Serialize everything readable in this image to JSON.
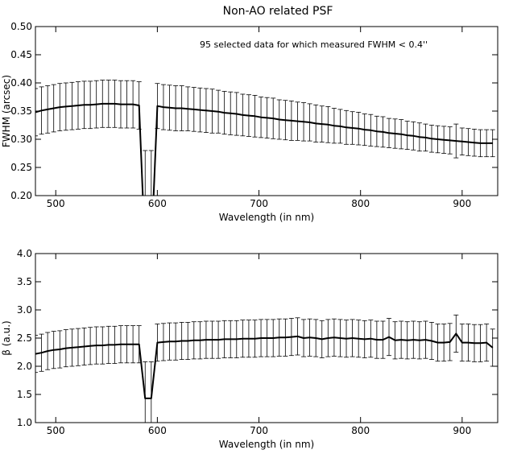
{
  "title": "Non-AO related PSF",
  "chart_data": [
    {
      "type": "line",
      "xlabel": "Wavelength (in nm)",
      "ylabel": "FWHM (arcsec)",
      "xlim": [
        480,
        935
      ],
      "ylim": [
        0.2,
        0.5
      ],
      "xticks": [
        500,
        600,
        700,
        800,
        900
      ],
      "yticks": [
        0.2,
        0.25,
        0.3,
        0.35,
        0.4,
        0.45,
        0.5
      ],
      "ytick_decimals": 2,
      "annotation": "95 selected data for which measured FWHM < 0.4''",
      "grid": false,
      "series": [
        {
          "x": [
            480,
            486,
            492,
            498,
            504,
            510,
            516,
            522,
            528,
            534,
            540,
            546,
            552,
            558,
            564,
            570,
            576,
            582,
            588,
            594,
            600,
            606,
            612,
            618,
            624,
            630,
            636,
            642,
            648,
            654,
            660,
            666,
            672,
            678,
            684,
            690,
            696,
            702,
            708,
            714,
            720,
            726,
            732,
            738,
            744,
            750,
            756,
            762,
            768,
            774,
            780,
            786,
            792,
            798,
            804,
            810,
            816,
            822,
            828,
            834,
            840,
            846,
            852,
            858,
            864,
            870,
            876,
            882,
            888,
            894,
            900,
            906,
            912,
            918,
            924,
            930
          ],
          "y": [
            0.348,
            0.351,
            0.353,
            0.355,
            0.357,
            0.358,
            0.359,
            0.36,
            0.361,
            0.361,
            0.362,
            0.363,
            0.363,
            0.363,
            0.362,
            0.362,
            0.362,
            0.36,
            0.1,
            0.1,
            0.359,
            0.357,
            0.356,
            0.355,
            0.355,
            0.354,
            0.353,
            0.352,
            0.351,
            0.35,
            0.349,
            0.347,
            0.346,
            0.345,
            0.343,
            0.342,
            0.341,
            0.339,
            0.338,
            0.337,
            0.335,
            0.334,
            0.333,
            0.332,
            0.331,
            0.33,
            0.328,
            0.327,
            0.326,
            0.324,
            0.323,
            0.321,
            0.32,
            0.319,
            0.317,
            0.316,
            0.314,
            0.313,
            0.311,
            0.31,
            0.309,
            0.307,
            0.306,
            0.304,
            0.303,
            0.301,
            0.3,
            0.299,
            0.298,
            0.297,
            0.296,
            0.295,
            0.294,
            0.293,
            0.293,
            0.293
          ],
          "err": [
            0.042,
            0.042,
            0.042,
            0.042,
            0.042,
            0.042,
            0.042,
            0.042,
            0.042,
            0.042,
            0.042,
            0.042,
            0.042,
            0.042,
            0.042,
            0.042,
            0.042,
            0.042,
            0.18,
            0.18,
            0.04,
            0.04,
            0.04,
            0.04,
            0.04,
            0.039,
            0.039,
            0.039,
            0.039,
            0.039,
            0.038,
            0.038,
            0.038,
            0.038,
            0.037,
            0.037,
            0.037,
            0.036,
            0.036,
            0.036,
            0.035,
            0.035,
            0.035,
            0.034,
            0.034,
            0.033,
            0.033,
            0.032,
            0.032,
            0.031,
            0.03,
            0.03,
            0.029,
            0.029,
            0.028,
            0.028,
            0.027,
            0.027,
            0.026,
            0.026,
            0.026,
            0.025,
            0.025,
            0.025,
            0.024,
            0.024,
            0.024,
            0.024,
            0.024,
            0.03,
            0.024,
            0.024,
            0.024,
            0.024,
            0.024,
            0.024
          ]
        }
      ]
    },
    {
      "type": "line",
      "xlabel": "Wavelength (in nm)",
      "ylabel": "β (a.u.)",
      "xlim": [
        480,
        935
      ],
      "ylim": [
        1.0,
        4.0
      ],
      "xticks": [
        500,
        600,
        700,
        800,
        900
      ],
      "yticks": [
        1.0,
        1.5,
        2.0,
        2.5,
        3.0,
        3.5,
        4.0
      ],
      "ytick_decimals": 1,
      "grid": false,
      "series": [
        {
          "x": [
            480,
            486,
            492,
            498,
            504,
            510,
            516,
            522,
            528,
            534,
            540,
            546,
            552,
            558,
            564,
            570,
            576,
            582,
            588,
            594,
            600,
            606,
            612,
            618,
            624,
            630,
            636,
            642,
            648,
            654,
            660,
            666,
            672,
            678,
            684,
            690,
            696,
            702,
            708,
            714,
            720,
            726,
            732,
            738,
            744,
            750,
            756,
            762,
            768,
            774,
            780,
            786,
            792,
            798,
            804,
            810,
            816,
            822,
            828,
            834,
            840,
            846,
            852,
            858,
            864,
            870,
            876,
            882,
            888,
            894,
            900,
            906,
            912,
            918,
            924,
            930
          ],
          "y": [
            2.22,
            2.24,
            2.27,
            2.29,
            2.3,
            2.32,
            2.33,
            2.34,
            2.35,
            2.36,
            2.37,
            2.37,
            2.38,
            2.38,
            2.39,
            2.39,
            2.39,
            2.39,
            1.43,
            1.43,
            2.42,
            2.43,
            2.44,
            2.44,
            2.45,
            2.45,
            2.46,
            2.46,
            2.47,
            2.47,
            2.47,
            2.48,
            2.48,
            2.48,
            2.49,
            2.49,
            2.49,
            2.5,
            2.5,
            2.5,
            2.51,
            2.51,
            2.52,
            2.53,
            2.5,
            2.51,
            2.5,
            2.48,
            2.5,
            2.51,
            2.5,
            2.49,
            2.5,
            2.49,
            2.48,
            2.49,
            2.47,
            2.47,
            2.52,
            2.46,
            2.47,
            2.46,
            2.47,
            2.46,
            2.47,
            2.45,
            2.42,
            2.42,
            2.43,
            2.58,
            2.42,
            2.42,
            2.41,
            2.41,
            2.42,
            2.33
          ],
          "err": [
            0.33,
            0.33,
            0.33,
            0.33,
            0.33,
            0.33,
            0.33,
            0.33,
            0.33,
            0.33,
            0.33,
            0.33,
            0.33,
            0.33,
            0.33,
            0.33,
            0.33,
            0.33,
            0.65,
            0.65,
            0.33,
            0.33,
            0.33,
            0.33,
            0.33,
            0.33,
            0.33,
            0.33,
            0.33,
            0.33,
            0.33,
            0.33,
            0.33,
            0.33,
            0.33,
            0.33,
            0.33,
            0.33,
            0.33,
            0.33,
            0.33,
            0.33,
            0.33,
            0.33,
            0.33,
            0.33,
            0.33,
            0.33,
            0.33,
            0.33,
            0.33,
            0.33,
            0.33,
            0.33,
            0.33,
            0.33,
            0.33,
            0.33,
            0.33,
            0.33,
            0.33,
            0.33,
            0.33,
            0.33,
            0.33,
            0.33,
            0.33,
            0.33,
            0.33,
            0.33,
            0.33,
            0.33,
            0.33,
            0.33,
            0.33,
            0.33
          ]
        }
      ]
    }
  ]
}
